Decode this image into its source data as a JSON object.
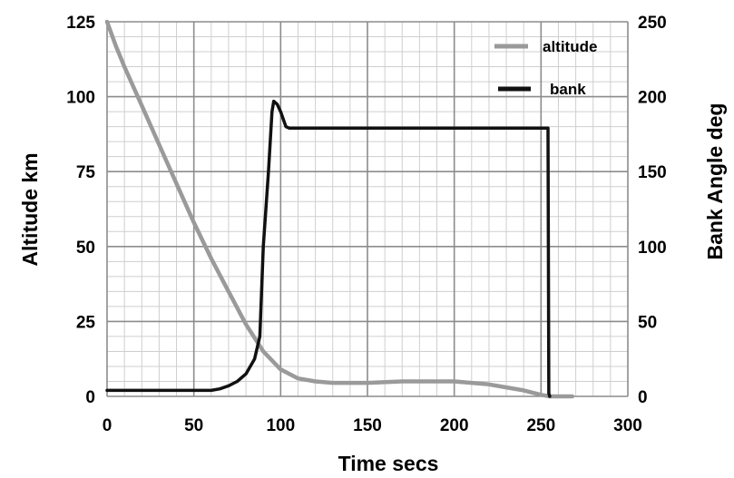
{
  "chart_data": {
    "type": "line",
    "xlabel": "Time secs",
    "ylabel_left": "Altitude km",
    "ylabel_right": "Bank Angle deg",
    "xlim": [
      0,
      300
    ],
    "ylim_left": [
      0,
      125
    ],
    "ylim_right": [
      0,
      250
    ],
    "x_ticks": [
      0,
      50,
      100,
      150,
      200,
      250,
      300
    ],
    "y_ticks_left": [
      0,
      25,
      50,
      75,
      100,
      125
    ],
    "y_ticks_right": [
      0,
      50,
      100,
      150,
      200,
      250
    ],
    "grid": true,
    "minor_grid_step_x": 10,
    "minor_grid_step_y": 5,
    "legend_position": "top-right",
    "series": [
      {
        "name": "altitude",
        "axis": "left",
        "color": "#9a9a9a",
        "x": [
          0,
          5,
          10,
          20,
          30,
          40,
          50,
          60,
          70,
          80,
          90,
          100,
          110,
          120,
          130,
          150,
          170,
          190,
          200,
          210,
          220,
          230,
          240,
          250,
          255,
          260,
          265,
          268
        ],
        "y": [
          125,
          117,
          110,
          97,
          84,
          71,
          58,
          46,
          35,
          24,
          15,
          9,
          6,
          5,
          4.5,
          4.5,
          5,
          5,
          5,
          4.5,
          4,
          3,
          2,
          0.5,
          0,
          0,
          0,
          0
        ]
      },
      {
        "name": "bank",
        "axis": "right",
        "color": "#111111",
        "x": [
          0,
          20,
          40,
          60,
          65,
          70,
          75,
          80,
          85,
          88,
          90,
          93,
          95,
          96,
          98,
          100,
          103,
          105,
          120,
          150,
          200,
          254,
          254.5,
          255
        ],
        "y": [
          4,
          4,
          4,
          4,
          5,
          7,
          10,
          15,
          25,
          40,
          100,
          150,
          190,
          197,
          195,
          190,
          180,
          179,
          179,
          179,
          179,
          179,
          2,
          0
        ]
      }
    ]
  }
}
